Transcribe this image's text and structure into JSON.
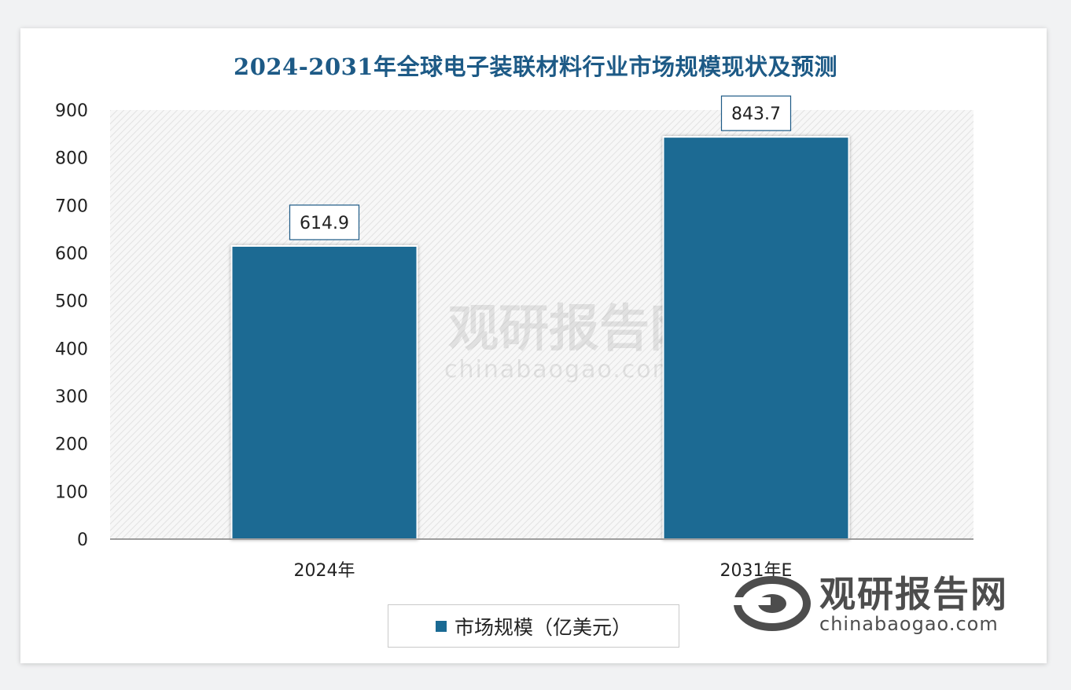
{
  "chart_data": {
    "type": "bar",
    "title": "2024-2031年全球电子装联材料行业市场规模现状及预测",
    "categories": [
      "2024年",
      "2031年E"
    ],
    "series": [
      {
        "name": "市场规模（亿美元）",
        "values": [
          614.9,
          843.7
        ]
      }
    ],
    "data_labels": [
      "614.9",
      "843.7"
    ],
    "ylim": [
      0,
      900
    ],
    "yticks": [
      0,
      100,
      200,
      300,
      400,
      500,
      600,
      700,
      800,
      900
    ],
    "xlabel": "",
    "ylabel": "",
    "grid": false,
    "legend_position": "bottom",
    "colors": {
      "bar": "#1a6a93",
      "title": "#1d5a86"
    }
  },
  "watermark": {
    "name": "观研报告网",
    "url": "chinabaogao.com"
  },
  "brand": {
    "name": "观研报告网",
    "url": "chinabaogao.com"
  }
}
